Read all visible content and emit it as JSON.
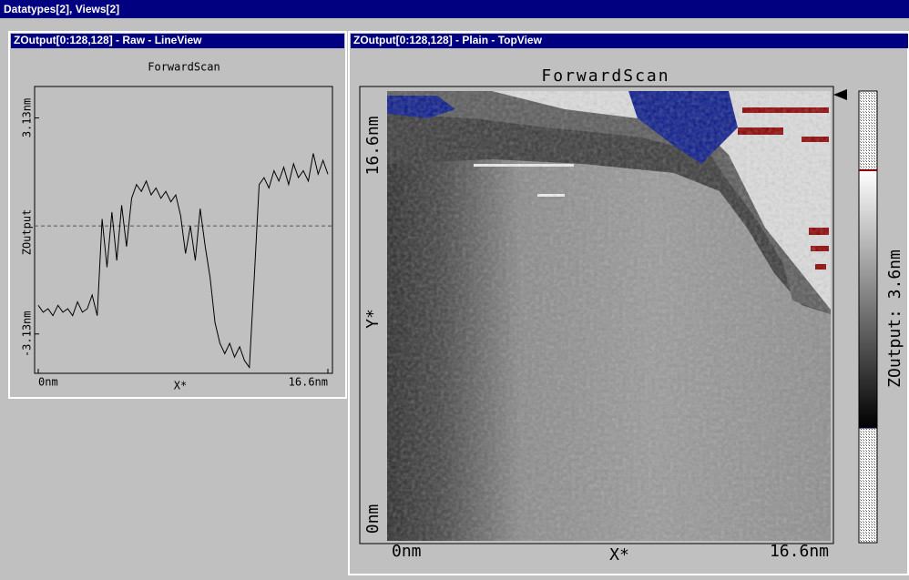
{
  "window_title": "Datatypes[2], Views[2]",
  "left_panel": {
    "title": "ZOutput[0:128,128] - Raw - LineView",
    "plot": {
      "type": "line",
      "title": "ForwardScan",
      "y_label": "ZOutput",
      "x_label": "X*",
      "xlim": [
        0,
        16.6
      ],
      "xticks": [
        {
          "value": 0,
          "label": "0nm"
        },
        {
          "value": 16.6,
          "label": "16.6nm"
        }
      ],
      "ylim": [
        -4.27,
        4.04
      ],
      "yticks": [
        {
          "value": 3.13,
          "label": "3.13nm"
        },
        {
          "value": -3.13,
          "label": "-3.13nm"
        }
      ],
      "color": "#000000",
      "x": [
        0,
        0.28,
        0.56,
        0.84,
        1.13,
        1.41,
        1.69,
        1.97,
        2.25,
        2.53,
        2.81,
        3.09,
        3.38,
        3.66,
        3.94,
        4.22,
        4.5,
        4.78,
        5.06,
        5.35,
        5.63,
        5.91,
        6.19,
        6.47,
        6.75,
        7.03,
        7.31,
        7.6,
        7.88,
        8.16,
        8.44,
        8.72,
        9.0,
        9.28,
        9.57,
        9.85,
        10.13,
        10.41,
        10.69,
        10.97,
        11.25,
        11.54,
        11.82,
        12.1,
        12.38,
        12.66,
        12.94,
        13.22,
        13.51,
        13.79,
        14.07,
        14.35,
        14.63,
        14.91,
        15.19,
        15.48,
        15.76,
        16.04,
        16.32,
        16.6
      ],
      "values": [
        -2.3,
        -2.5,
        -2.4,
        -2.6,
        -2.3,
        -2.5,
        -2.4,
        -2.6,
        -2.2,
        -2.5,
        -2.4,
        -2.0,
        -2.6,
        0.2,
        -1.2,
        0.4,
        -1.0,
        0.6,
        -0.6,
        0.8,
        1.2,
        1.0,
        1.3,
        0.9,
        1.1,
        0.8,
        1.0,
        0.7,
        0.9,
        0.3,
        -0.8,
        0.0,
        -1.0,
        0.5,
        -0.6,
        -1.5,
        -2.8,
        -3.4,
        -3.7,
        -3.4,
        -3.8,
        -3.5,
        -3.9,
        -4.1,
        -1.5,
        1.2,
        1.4,
        1.1,
        1.6,
        1.3,
        1.7,
        1.2,
        1.8,
        1.4,
        1.6,
        1.3,
        2.1,
        1.5,
        1.9,
        1.5
      ]
    }
  },
  "right_panel": {
    "title": "ZOutput[0:128,128] - Plain - TopView",
    "image_title": "ForwardScan",
    "y_top": "16.6nm",
    "y_label": "Y*",
    "y_bottom": "0nm",
    "x_left": "0nm",
    "x_label": "X*",
    "x_right": "16.6nm",
    "colorbar_label": "ZOutput: 3.6nm"
  }
}
